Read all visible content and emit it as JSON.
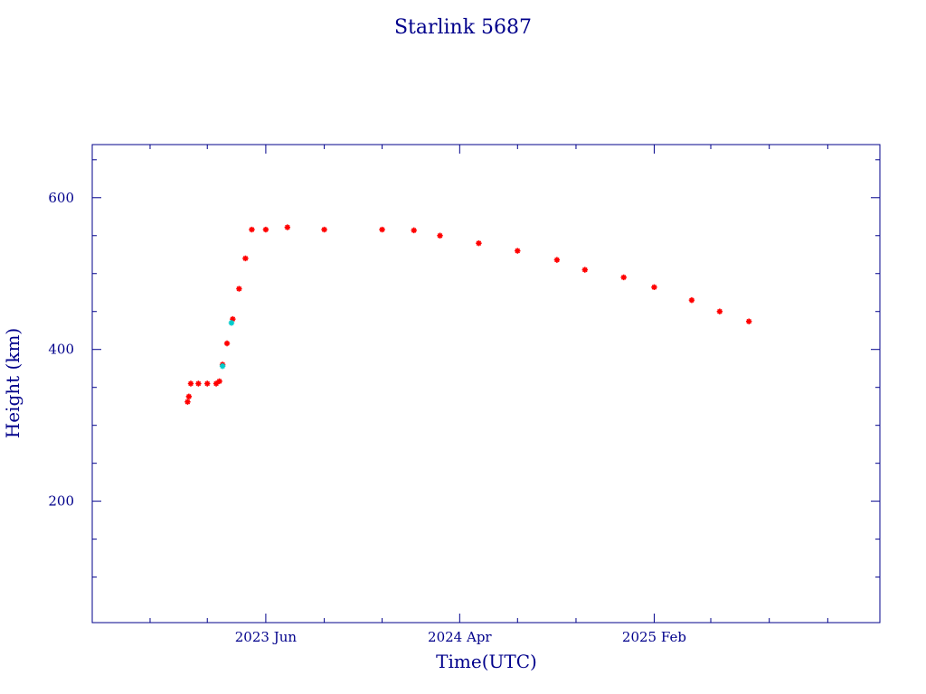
{
  "chart_data": {
    "type": "scatter",
    "title": "Starlink 5687",
    "xlabel": "Time(UTC)",
    "ylabel": "Height (km)",
    "x_axis": {
      "type": "date",
      "range": [
        "2022-09-01",
        "2026-01-22"
      ],
      "major_ticks": [
        {
          "date": "2023-06-01",
          "label": "2023 Jun"
        },
        {
          "date": "2024-04-01",
          "label": "2024 Apr"
        },
        {
          "date": "2025-02-01",
          "label": "2025 Feb"
        }
      ],
      "minor_ticks": [
        "2022-12-01",
        "2023-03-01",
        "2023-09-01",
        "2023-12-01",
        "2024-07-01",
        "2024-10-01",
        "2025-05-01",
        "2025-08-01",
        "2025-11-01"
      ]
    },
    "y_axis": {
      "range": [
        40,
        670
      ],
      "major_ticks": [
        200,
        400,
        600
      ],
      "minor_ticks": [
        100,
        150,
        250,
        300,
        350,
        450,
        500,
        550,
        650
      ]
    },
    "grid": false,
    "series": [
      {
        "color": "#ff0000",
        "marker": "star",
        "points": [
          {
            "x": "2023-01-29",
            "y": 331
          },
          {
            "x": "2023-01-31",
            "y": 338
          },
          {
            "x": "2023-02-03",
            "y": 355
          },
          {
            "x": "2023-02-15",
            "y": 355
          },
          {
            "x": "2023-03-01",
            "y": 355
          },
          {
            "x": "2023-03-15",
            "y": 355
          },
          {
            "x": "2023-03-20",
            "y": 358
          },
          {
            "x": "2023-03-25",
            "y": 380
          },
          {
            "x": "2023-04-01",
            "y": 408
          },
          {
            "x": "2023-04-10",
            "y": 440
          },
          {
            "x": "2023-04-20",
            "y": 480
          },
          {
            "x": "2023-04-30",
            "y": 520
          },
          {
            "x": "2023-05-10",
            "y": 558
          },
          {
            "x": "2023-06-01",
            "y": 558
          },
          {
            "x": "2023-07-05",
            "y": 561
          },
          {
            "x": "2023-09-01",
            "y": 558
          },
          {
            "x": "2023-12-01",
            "y": 558
          },
          {
            "x": "2024-01-20",
            "y": 557
          },
          {
            "x": "2024-03-01",
            "y": 550
          },
          {
            "x": "2024-05-01",
            "y": 540
          },
          {
            "x": "2024-07-01",
            "y": 530
          },
          {
            "x": "2024-09-01",
            "y": 518
          },
          {
            "x": "2024-10-15",
            "y": 505
          },
          {
            "x": "2024-12-15",
            "y": 495
          },
          {
            "x": "2025-02-01",
            "y": 482
          },
          {
            "x": "2025-04-01",
            "y": 465
          },
          {
            "x": "2025-05-15",
            "y": 450
          },
          {
            "x": "2025-06-30",
            "y": 437
          }
        ]
      },
      {
        "color": "#00cccc",
        "marker": "star",
        "points": [
          {
            "x": "2023-03-25",
            "y": 378
          },
          {
            "x": "2023-04-08",
            "y": 435
          }
        ]
      }
    ]
  }
}
